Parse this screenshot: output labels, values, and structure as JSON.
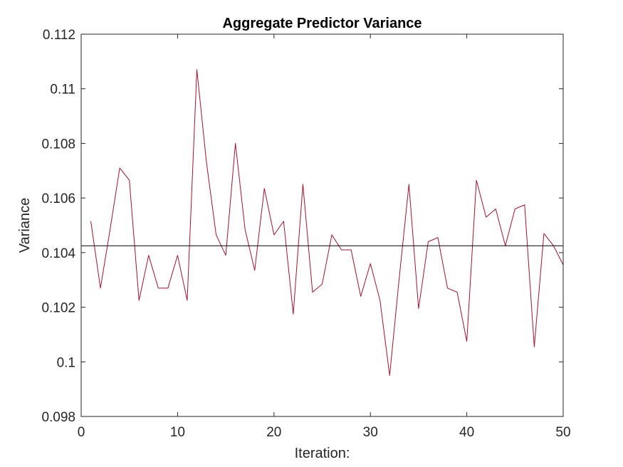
{
  "chart_data": {
    "type": "line",
    "title": "Aggregate Predictor Variance",
    "xlabel": "Iteration:",
    "ylabel": "Variance",
    "xlim": [
      0,
      50
    ],
    "ylim": [
      0.098,
      0.112
    ],
    "x_ticks": [
      0,
      10,
      20,
      30,
      40,
      50
    ],
    "x_tick_labels": [
      "0",
      "10",
      "20",
      "30",
      "40",
      "50"
    ],
    "y_ticks": [
      0.098,
      0.1,
      0.102,
      0.104,
      0.106,
      0.108,
      0.11,
      0.112
    ],
    "y_tick_labels": [
      "0.098",
      "0.1",
      "0.102",
      "0.104",
      "0.106",
      "0.108",
      "0.11",
      "0.112"
    ],
    "grid": false,
    "legend": "none",
    "series": [
      {
        "color": "#a2142f",
        "x": [
          1,
          2,
          3,
          4,
          5,
          6,
          7,
          8,
          9,
          10,
          11,
          12,
          13,
          14,
          15,
          16,
          17,
          18,
          19,
          20,
          21,
          22,
          23,
          24,
          25,
          26,
          27,
          28,
          29,
          30,
          31,
          32,
          33,
          34,
          35,
          36,
          37,
          38,
          39,
          40,
          41,
          42,
          43,
          44,
          45,
          46,
          47,
          48,
          49,
          50
        ],
        "values": [
          0.10515,
          0.1027,
          0.10485,
          0.1071,
          0.10665,
          0.10225,
          0.1039,
          0.1027,
          0.1027,
          0.1039,
          0.10225,
          0.1107,
          0.1073,
          0.10465,
          0.1039,
          0.108,
          0.10485,
          0.10335,
          0.10635,
          0.10465,
          0.10515,
          0.10175,
          0.1065,
          0.10255,
          0.10285,
          0.10465,
          0.1041,
          0.1041,
          0.1024,
          0.1036,
          0.10225,
          0.0995,
          0.1031,
          0.1065,
          0.10195,
          0.1044,
          0.10455,
          0.1027,
          0.10255,
          0.10075,
          0.10665,
          0.1053,
          0.1056,
          0.10425,
          0.1056,
          0.10575,
          0.10055,
          0.1047,
          0.10425,
          0.10355
        ]
      },
      {
        "color": "#000000",
        "x": [
          0,
          50
        ],
        "values": [
          0.10425,
          0.10425
        ]
      }
    ]
  }
}
